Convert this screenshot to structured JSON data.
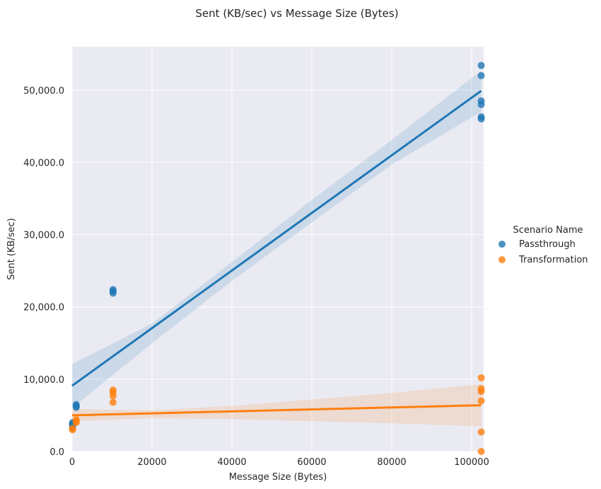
{
  "chart_data": {
    "type": "scatter",
    "title": "Sent (KB/sec) vs Message Size (Bytes)",
    "xlabel": "Message Size (Bytes)",
    "ylabel": "Sent (KB/sec)",
    "xlim": [
      0,
      103000
    ],
    "ylim": [
      0,
      56000
    ],
    "x_ticks": [
      0,
      20000,
      40000,
      60000,
      80000,
      100000
    ],
    "x_tick_labels": [
      "0",
      "20000",
      "40000",
      "60000",
      "80000",
      "100000"
    ],
    "y_ticks": [
      0,
      10000,
      20000,
      30000,
      40000,
      50000
    ],
    "y_tick_labels": [
      "0.0",
      "10,000.0",
      "20,000.0",
      "30,000.0",
      "40,000.0",
      "50,000.0"
    ],
    "grid": true,
    "legend_title": "Scenario Name",
    "legend_position": "right",
    "series": [
      {
        "name": "Passthrough",
        "color": "#1f77b4",
        "points": [
          [
            100,
            3300
          ],
          [
            100,
            3600
          ],
          [
            100,
            3800
          ],
          [
            100,
            4000
          ],
          [
            1024,
            6100
          ],
          [
            1024,
            6300
          ],
          [
            1024,
            6500
          ],
          [
            10240,
            21900
          ],
          [
            10240,
            22200
          ],
          [
            10240,
            22400
          ],
          [
            102400,
            53400
          ],
          [
            102400,
            52000
          ],
          [
            102400,
            48500
          ],
          [
            102400,
            48000
          ],
          [
            102400,
            46300
          ],
          [
            102400,
            46000
          ]
        ],
        "regression": {
          "x": [
            0,
            102400
          ],
          "y": [
            9100,
            49900
          ]
        },
        "ci_upper": [
          [
            0,
            12100
          ],
          [
            20000,
            17700
          ],
          [
            40000,
            26200
          ],
          [
            60000,
            34800
          ],
          [
            80000,
            43100
          ],
          [
            102400,
            52700
          ]
        ],
        "ci_lower": [
          [
            0,
            6000
          ],
          [
            20000,
            15000
          ],
          [
            40000,
            23600
          ],
          [
            60000,
            31700
          ],
          [
            80000,
            39700
          ],
          [
            102400,
            47000
          ]
        ]
      },
      {
        "name": "Transformation",
        "color": "#ff7f0e",
        "points": [
          [
            100,
            3000
          ],
          [
            100,
            3200
          ],
          [
            1024,
            4000
          ],
          [
            1024,
            4200
          ],
          [
            1024,
            4400
          ],
          [
            10240,
            6800
          ],
          [
            10240,
            7700
          ],
          [
            10240,
            8200
          ],
          [
            10240,
            8500
          ],
          [
            102400,
            10200
          ],
          [
            102400,
            8700
          ],
          [
            102400,
            8300
          ],
          [
            102400,
            7000
          ],
          [
            102400,
            2700
          ],
          [
            102400,
            0
          ]
        ],
        "regression": {
          "x": [
            0,
            102400
          ],
          "y": [
            5000,
            6400
          ]
        },
        "ci_upper": [
          [
            0,
            5900
          ],
          [
            20000,
            5700
          ],
          [
            40000,
            6300
          ],
          [
            60000,
            7200
          ],
          [
            80000,
            8100
          ],
          [
            102400,
            9300
          ]
        ],
        "ci_lower": [
          [
            0,
            4200
          ],
          [
            20000,
            4600
          ],
          [
            40000,
            4500
          ],
          [
            60000,
            4200
          ],
          [
            80000,
            3900
          ],
          [
            102400,
            3500
          ]
        ]
      }
    ]
  }
}
